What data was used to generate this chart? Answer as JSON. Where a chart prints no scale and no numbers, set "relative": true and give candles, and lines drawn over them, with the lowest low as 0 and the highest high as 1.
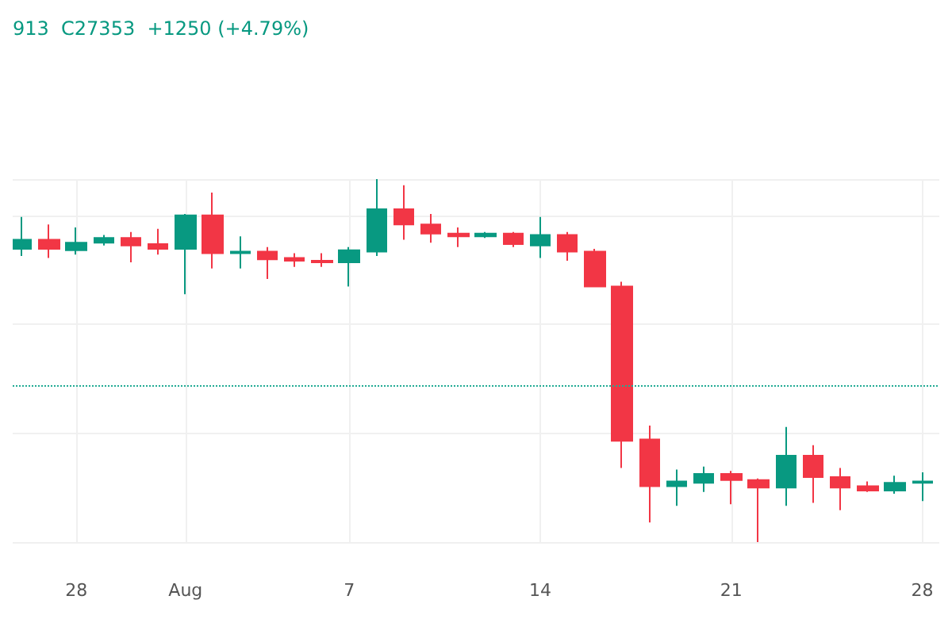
{
  "chart_data": {
    "type": "candlestick",
    "relative": true,
    "x": [
      "--07-26",
      "--07-27",
      "--07-28",
      "--07-29",
      "--07-30",
      "--07-31",
      "--08-01",
      "--08-02",
      "--08-03",
      "--08-04",
      "--08-05",
      "--08-06",
      "--08-07",
      "--08-08",
      "--08-09",
      "--08-10",
      "--08-11",
      "--08-12",
      "--08-13",
      "--08-14",
      "--08-15",
      "--08-16",
      "--08-17",
      "--08-18",
      "--08-19",
      "--08-20",
      "--08-21",
      "--08-22",
      "--08-23",
      "--08-24",
      "--08-25",
      "--08-26",
      "--08-27",
      "--08-28"
    ],
    "ohlc": [
      [
        0.808,
        0.896,
        0.788,
        0.833
      ],
      [
        0.833,
        0.875,
        0.783,
        0.808
      ],
      [
        0.804,
        0.867,
        0.792,
        0.825
      ],
      [
        0.825,
        0.846,
        0.817,
        0.838
      ],
      [
        0.838,
        0.854,
        0.771,
        0.817
      ],
      [
        0.821,
        0.863,
        0.792,
        0.808
      ],
      [
        0.808,
        0.904,
        0.683,
        0.9
      ],
      [
        0.9,
        0.963,
        0.754,
        0.796
      ],
      [
        0.796,
        0.842,
        0.754,
        0.8
      ],
      [
        0.8,
        0.813,
        0.725,
        0.779
      ],
      [
        0.783,
        0.796,
        0.758,
        0.775
      ],
      [
        0.775,
        0.796,
        0.758,
        0.771
      ],
      [
        0.771,
        0.813,
        0.704,
        0.804
      ],
      [
        0.8,
        1,
        0.788,
        0.917
      ],
      [
        0.917,
        0.983,
        0.833,
        0.875
      ],
      [
        0.875,
        0.904,
        0.825,
        0.85
      ],
      [
        0.85,
        0.867,
        0.813,
        0.842
      ],
      [
        0.842,
        0.854,
        0.838,
        0.85
      ],
      [
        0.85,
        0.854,
        0.813,
        0.821
      ],
      [
        0.817,
        0.896,
        0.783,
        0.846
      ],
      [
        0.846,
        0.854,
        0.775,
        0.8
      ],
      [
        0.8,
        0.808,
        0.704,
        0.704
      ],
      [
        0.704,
        0.717,
        0.204,
        0.279
      ],
      [
        0.283,
        0.321,
        0.054,
        0.154
      ],
      [
        0.154,
        0.2,
        0.1,
        0.167
      ],
      [
        0.163,
        0.208,
        0.138,
        0.188
      ],
      [
        0.188,
        0.196,
        0.104,
        0.171
      ],
      [
        0.171,
        0.175,
        0,
        0.15
      ],
      [
        0.15,
        0.317,
        0.1,
        0.238
      ],
      [
        0.238,
        0.267,
        0.108,
        0.179
      ],
      [
        0.179,
        0.204,
        0.088,
        0.15
      ],
      [
        0.154,
        0.167,
        0.138,
        0.142
      ],
      [
        0.142,
        0.183,
        0.133,
        0.163
      ],
      [
        0.163,
        0.192,
        0.113,
        0.167
      ]
    ],
    "colors": [
      "#089981",
      "#f23645",
      "#089981",
      "#089981",
      "#f23645",
      "#f23645",
      "#089981",
      "#f23645",
      "#089981",
      "#f23645",
      "#f23645",
      "#f23645",
      "#089981",
      "#089981",
      "#f23645",
      "#f23645",
      "#f23645",
      "#089981",
      "#f23645",
      "#089981",
      "#f23645",
      "#f23645",
      "#f23645",
      "#f23645",
      "#089981",
      "#089981",
      "#f23645",
      "#f23645",
      "#089981",
      "#f23645",
      "#f23645",
      "#f23645",
      "#089981",
      "#089981"
    ],
    "xlim": [
      "--07-25T16:00",
      "--08-28T15:00"
    ],
    "xticks": [
      {
        "value": "--07-28",
        "label": "28"
      },
      {
        "value": "--08-01",
        "label": "Aug"
      },
      {
        "value": "--08-07",
        "label": "7"
      },
      {
        "value": "--08-14",
        "label": "14"
      },
      {
        "value": "--08-21",
        "label": "21"
      },
      {
        "value": "--08-28",
        "label": "28"
      }
    ],
    "ref_lines": [
      {
        "axis": "y",
        "value": 0.433,
        "color": "#22ab94",
        "line_style": "dotted"
      }
    ],
    "annotations": [
      "913  C27353  +1250 (+4.79%)"
    ],
    "grid": true,
    "tick_labels": "x"
  }
}
